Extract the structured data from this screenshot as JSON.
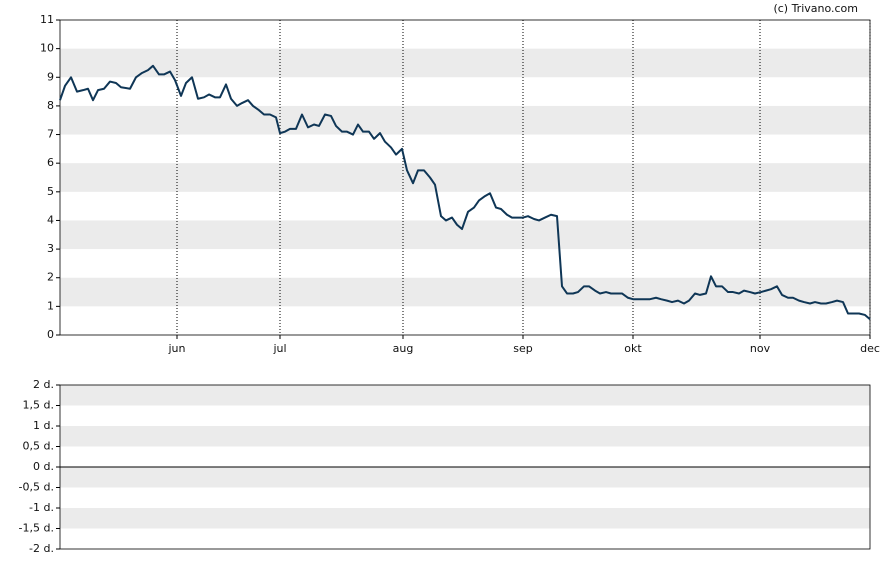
{
  "credit": "(c) Trivano.com",
  "chart_data": [
    {
      "type": "line",
      "x": [
        0,
        1,
        2.2,
        3.4,
        4.6,
        5.6,
        6.6,
        7.6,
        8.8,
        10,
        11.2,
        12.2,
        14,
        15.2,
        16.4,
        17.6,
        18.6,
        19.8,
        20.8,
        22,
        23,
        24.2,
        25.2,
        26.4,
        27.6,
        28.8,
        29.8,
        31,
        32,
        33.2,
        34.2,
        35.4,
        36.4,
        37.6,
        38.6,
        39.8,
        40.8,
        42,
        43.2,
        44,
        45,
        46,
        47.2,
        48.4,
        49.6,
        50.8,
        51.8,
        53,
        54.2,
        55.2,
        56.4,
        57.4,
        58.6,
        59.6,
        60.6,
        61.8,
        62.8,
        64,
        65,
        66.2,
        67.2,
        68.4,
        69.4,
        70.6,
        71.6,
        72.8,
        74,
        75,
        76.2,
        77.2,
        78.4,
        79.4,
        80.4,
        81.6,
        82.8,
        83.8,
        85,
        86,
        87.2,
        88.2,
        89.4,
        90.4,
        91.6,
        92.6,
        93.6,
        94.8,
        95.8,
        97,
        98.2,
        99.4,
        100.4,
        101.4,
        102.6,
        103.6,
        104.8,
        105.8,
        107,
        108,
        109.2,
        110.2,
        111.4,
        112.4,
        113.6,
        114.6,
        115.8,
        117,
        118,
        119.2,
        120.2,
        121.4,
        122.4,
        123.6,
        124.8,
        125.8,
        127,
        128,
        129.2,
        130.2,
        131.2,
        132.4,
        133.6,
        134.6,
        135.8,
        136.8,
        138,
        139,
        140.2,
        141.2,
        142.2,
        143.4,
        144.4,
        145.6,
        146.6,
        147.8,
        148.8,
        150,
        151,
        152.2,
        153.2,
        154.4,
        155.4,
        156.6,
        157.6,
        158.8,
        159.8,
        161,
        162
      ],
      "series": [
        {
          "color": "#0f3656",
          "values": [
            8.2,
            8.7,
            9.0,
            8.5,
            8.55,
            8.6,
            8.2,
            8.55,
            8.6,
            8.85,
            8.8,
            8.65,
            8.6,
            9.0,
            9.15,
            9.25,
            9.4,
            9.1,
            9.1,
            9.2,
            8.9,
            8.35,
            8.8,
            9.0,
            8.25,
            8.3,
            8.4,
            8.3,
            8.3,
            8.75,
            8.25,
            8.0,
            8.1,
            8.2,
            8.0,
            7.85,
            7.7,
            7.7,
            7.6,
            7.05,
            7.1,
            7.2,
            7.2,
            7.7,
            7.25,
            7.35,
            7.3,
            7.7,
            7.65,
            7.3,
            7.1,
            7.1,
            7.0,
            7.35,
            7.1,
            7.1,
            6.85,
            7.05,
            6.75,
            6.55,
            6.3,
            6.5,
            5.75,
            5.3,
            5.75,
            5.75,
            5.5,
            5.25,
            4.15,
            4.0,
            4.1,
            3.85,
            3.7,
            4.3,
            4.45,
            4.7,
            4.85,
            4.95,
            4.45,
            4.4,
            4.2,
            4.1,
            4.1,
            4.1,
            4.15,
            4.05,
            4.0,
            4.1,
            4.2,
            4.15,
            1.7,
            1.45,
            1.45,
            1.5,
            1.7,
            1.7,
            1.55,
            1.45,
            1.5,
            1.45,
            1.45,
            1.45,
            1.3,
            1.25,
            1.25,
            1.25,
            1.25,
            1.3,
            1.25,
            1.2,
            1.15,
            1.2,
            1.1,
            1.2,
            1.45,
            1.4,
            1.45,
            2.05,
            1.7,
            1.7,
            1.5,
            1.5,
            1.45,
            1.55,
            1.5,
            1.45,
            1.5,
            1.55,
            1.6,
            1.7,
            1.4,
            1.3,
            1.3,
            1.2,
            1.15,
            1.1,
            1.15,
            1.1,
            1.1,
            1.15,
            1.2,
            1.15,
            0.75,
            0.75,
            0.75,
            0.7,
            0.55
          ]
        }
      ],
      "xlim": [
        0,
        162
      ],
      "xticks": [
        {
          "value": 23.4,
          "label": "jun"
        },
        {
          "value": 44,
          "label": "jul"
        },
        {
          "value": 68.6,
          "label": "aug"
        },
        {
          "value": 92.6,
          "label": "sep"
        },
        {
          "value": 114.6,
          "label": "okt"
        },
        {
          "value": 140,
          "label": "nov"
        },
        {
          "value": 162,
          "label": "dec"
        }
      ],
      "ylim": [
        0,
        11
      ],
      "yticks": [
        0,
        1,
        2,
        3,
        4,
        5,
        6,
        7,
        8,
        9,
        10,
        11
      ],
      "grid": "bands",
      "x_grid": "dotted"
    },
    {
      "type": "line",
      "ylim": [
        -2,
        2
      ],
      "yticks": [
        {
          "value": -2,
          "label": "-2 d."
        },
        {
          "value": -1.5,
          "label": "-1,5 d."
        },
        {
          "value": -1,
          "label": "-1 d."
        },
        {
          "value": -0.5,
          "label": "-0,5 d."
        },
        {
          "value": 0,
          "label": "0 d."
        },
        {
          "value": 0.5,
          "label": "0,5 d."
        },
        {
          "value": 1,
          "label": "1 d."
        },
        {
          "value": 1.5,
          "label": "1,5 d."
        },
        {
          "value": 2,
          "label": "2 d."
        }
      ],
      "grid": "bands",
      "zero_line": true
    }
  ]
}
